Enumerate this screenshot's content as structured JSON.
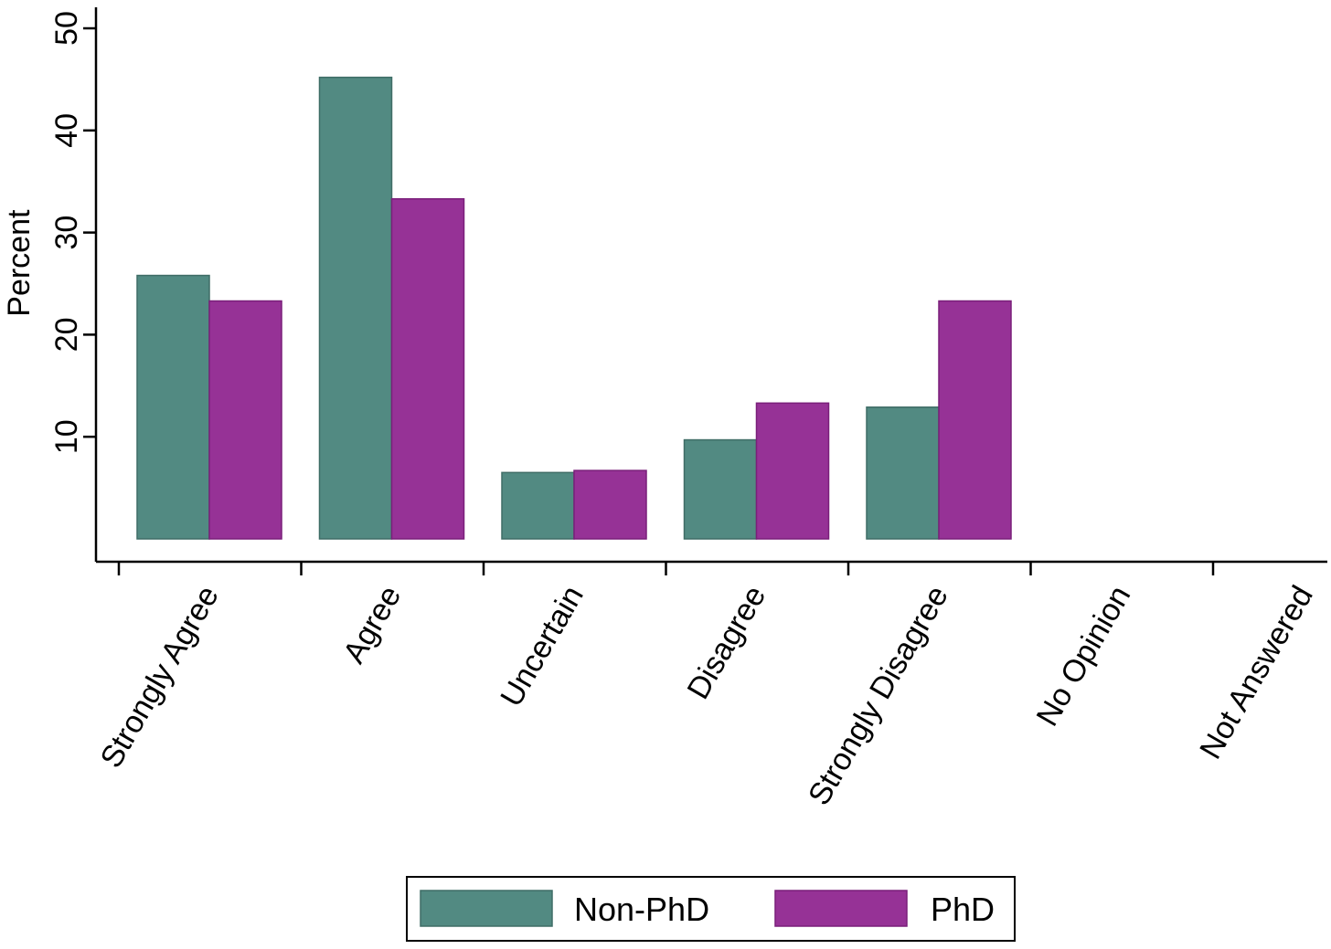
{
  "chart_data": {
    "type": "bar",
    "title": "",
    "xlabel": "",
    "ylabel": "Percent",
    "ylim": [
      0,
      52
    ],
    "yticks": [
      10,
      20,
      30,
      40,
      50
    ],
    "grid": false,
    "legend_position": "bottom",
    "categories": [
      "Strongly Agree",
      "Agree",
      "Uncertain",
      "Disagree",
      "Strongly Disagree",
      "No Opinion",
      "Not Answered"
    ],
    "series": [
      {
        "name": "Non-PhD",
        "color": "#528a82",
        "edge_color": "#3f6d66",
        "values": [
          25.8,
          45.2,
          6.5,
          9.7,
          12.9,
          0,
          0
        ]
      },
      {
        "name": "PhD",
        "color": "#963296",
        "edge_color": "#7a1f7a",
        "values": [
          23.3,
          33.3,
          6.7,
          13.3,
          23.3,
          0,
          0
        ]
      }
    ]
  }
}
